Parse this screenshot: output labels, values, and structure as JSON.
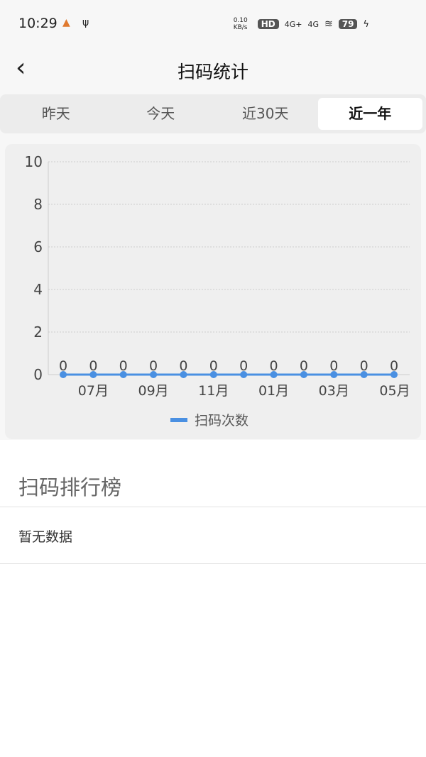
{
  "status_bar": {
    "time": "10:29",
    "net_speed": "0.10 KB/s",
    "hd": "HD",
    "signal1": "4G+",
    "signal2": "4G",
    "battery": "79",
    "icons": [
      "location-app-icon",
      "usb-icon",
      "wifi-icon",
      "charging-icon"
    ]
  },
  "header": {
    "title": "扫码统计",
    "back_icon": "chevron-left-icon"
  },
  "tabs": [
    {
      "label": "昨天"
    },
    {
      "label": "今天"
    },
    {
      "label": "近30天"
    },
    {
      "label": "近一年",
      "active": true
    }
  ],
  "chart_data": {
    "type": "line",
    "x_tick_labels": [
      "07月",
      "09月",
      "11月",
      "01月",
      "03月",
      "05月"
    ],
    "values": [
      0,
      0,
      0,
      0,
      0,
      0,
      0,
      0,
      0,
      0,
      0,
      0
    ],
    "data_labels": true,
    "ylim": [
      0,
      10
    ],
    "y_ticks": [
      0,
      2,
      4,
      6,
      8,
      10
    ],
    "grid": true,
    "series": [
      {
        "name": "扫码次数",
        "color": "#4a90e2"
      }
    ],
    "legend": "bottom"
  },
  "ranking": {
    "title": "扫码排行榜",
    "empty_text": "暂无数据"
  }
}
